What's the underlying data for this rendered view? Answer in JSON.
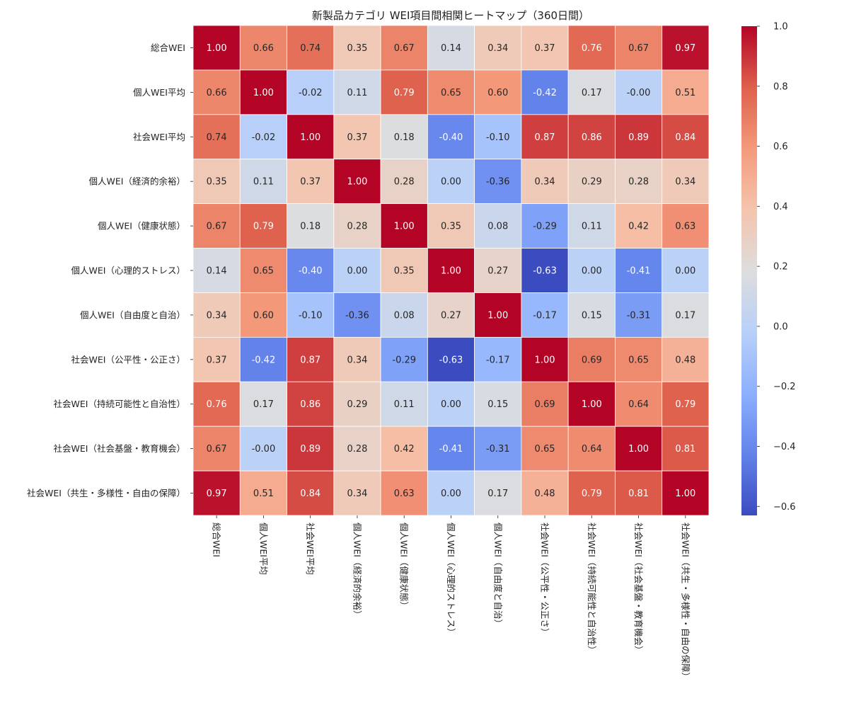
{
  "chart_data": {
    "type": "heatmap",
    "title": "新製品カテゴリ WEI項目間相関ヒートマップ（360日間）",
    "labels": [
      "総合WEI",
      "個人WEI平均",
      "社会WEI平均",
      "個人WEI（経済的余裕）",
      "個人WEI（健康状態）",
      "個人WEI（心理的ストレス）",
      "個人WEI（自由度と自治）",
      "社会WEI（公平性・公正さ）",
      "社会WEI（持続可能性と自治性）",
      "社会WEI（社会基盤・教育機会）",
      "社会WEI（共生・多様性・自由の保障）"
    ],
    "matrix": [
      [
        1.0,
        0.66,
        0.74,
        0.35,
        0.67,
        0.14,
        0.34,
        0.37,
        0.76,
        0.67,
        0.97
      ],
      [
        0.66,
        1.0,
        -0.02,
        0.11,
        0.79,
        0.65,
        0.6,
        -0.42,
        0.17,
        -0.0,
        0.51
      ],
      [
        0.74,
        -0.02,
        1.0,
        0.37,
        0.18,
        -0.4,
        -0.1,
        0.87,
        0.86,
        0.89,
        0.84
      ],
      [
        0.35,
        0.11,
        0.37,
        1.0,
        0.28,
        0.0,
        -0.36,
        0.34,
        0.29,
        0.28,
        0.34
      ],
      [
        0.67,
        0.79,
        0.18,
        0.28,
        1.0,
        0.35,
        0.08,
        -0.29,
        0.11,
        0.42,
        0.63
      ],
      [
        0.14,
        0.65,
        -0.4,
        0.0,
        0.35,
        1.0,
        0.27,
        -0.63,
        0.0,
        -0.41,
        0.0
      ],
      [
        0.34,
        0.6,
        -0.1,
        -0.36,
        0.08,
        0.27,
        1.0,
        -0.17,
        0.15,
        -0.31,
        0.17
      ],
      [
        0.37,
        -0.42,
        0.87,
        0.34,
        -0.29,
        -0.63,
        -0.17,
        1.0,
        0.69,
        0.65,
        0.48
      ],
      [
        0.76,
        0.17,
        0.86,
        0.29,
        0.11,
        0.0,
        0.15,
        0.69,
        1.0,
        0.64,
        0.79
      ],
      [
        0.67,
        -0.0,
        0.89,
        0.28,
        0.42,
        -0.41,
        -0.31,
        0.65,
        0.64,
        1.0,
        0.81
      ],
      [
        0.97,
        0.51,
        0.84,
        0.34,
        0.63,
        0.0,
        0.17,
        0.48,
        0.79,
        0.81,
        1.0
      ]
    ],
    "value_labels": [
      [
        "1.00",
        "0.66",
        "0.74",
        "0.35",
        "0.67",
        "0.14",
        "0.34",
        "0.37",
        "0.76",
        "0.67",
        "0.97"
      ],
      [
        "0.66",
        "1.00",
        "-0.02",
        "0.11",
        "0.79",
        "0.65",
        "0.60",
        "-0.42",
        "0.17",
        "-0.00",
        "0.51"
      ],
      [
        "0.74",
        "-0.02",
        "1.00",
        "0.37",
        "0.18",
        "-0.40",
        "-0.10",
        "0.87",
        "0.86",
        "0.89",
        "0.84"
      ],
      [
        "0.35",
        "0.11",
        "0.37",
        "1.00",
        "0.28",
        "0.00",
        "-0.36",
        "0.34",
        "0.29",
        "0.28",
        "0.34"
      ],
      [
        "0.67",
        "0.79",
        "0.18",
        "0.28",
        "1.00",
        "0.35",
        "0.08",
        "-0.29",
        "0.11",
        "0.42",
        "0.63"
      ],
      [
        "0.14",
        "0.65",
        "-0.40",
        "0.00",
        "0.35",
        "1.00",
        "0.27",
        "-0.63",
        "0.00",
        "-0.41",
        "0.00"
      ],
      [
        "0.34",
        "0.60",
        "-0.10",
        "-0.36",
        "0.08",
        "0.27",
        "1.00",
        "-0.17",
        "0.15",
        "-0.31",
        "0.17"
      ],
      [
        "0.37",
        "-0.42",
        "0.87",
        "0.34",
        "-0.29",
        "-0.63",
        "-0.17",
        "1.00",
        "0.69",
        "0.65",
        "0.48"
      ],
      [
        "0.76",
        "0.17",
        "0.86",
        "0.29",
        "0.11",
        "0.00",
        "0.15",
        "0.69",
        "1.00",
        "0.64",
        "0.79"
      ],
      [
        "0.67",
        "-0.00",
        "0.89",
        "0.28",
        "0.42",
        "-0.41",
        "-0.31",
        "0.65",
        "0.64",
        "1.00",
        "0.81"
      ],
      [
        "0.97",
        "0.51",
        "0.84",
        "0.34",
        "0.63",
        "0.00",
        "0.17",
        "0.48",
        "0.79",
        "0.81",
        "1.00"
      ]
    ],
    "colormap": "coolwarm",
    "vmin": -0.63,
    "vmax": 1.0,
    "colorbar_ticks": [
      1.0,
      0.8,
      0.6,
      0.4,
      0.2,
      0.0,
      -0.2,
      -0.4,
      -0.6
    ],
    "colorbar_tick_labels": [
      "1.0",
      "0.8",
      "0.6",
      "0.4",
      "0.2",
      "0.0",
      "−0.2",
      "−0.4",
      "−0.6"
    ],
    "annotations": true
  }
}
